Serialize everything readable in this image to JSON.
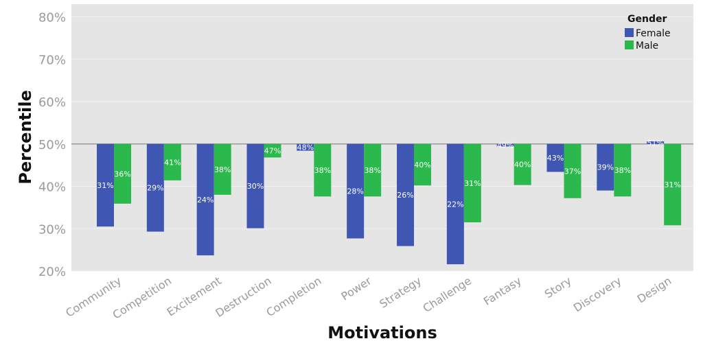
{
  "chart_data": {
    "type": "bar",
    "xlabel": "Motivations",
    "ylabel": "Percentile",
    "ylim": [
      20,
      83
    ],
    "baseline": 50,
    "yticks": [
      "20%",
      "30%",
      "40%",
      "50%",
      "60%",
      "70%",
      "80%"
    ],
    "ytick_values": [
      20,
      30,
      40,
      50,
      60,
      70,
      80
    ],
    "categories": [
      "Community",
      "Competition",
      "Excitement",
      "Destruction",
      "Completion",
      "Power",
      "Strategy",
      "Challenge",
      "Fantasy",
      "Story",
      "Discovery",
      "Design"
    ],
    "legend_title": "Gender",
    "legend_position": "top-right",
    "grid": true,
    "series": [
      {
        "name": "Female",
        "color": "#3f57b3",
        "values": [
          30.5,
          29.3,
          23.7,
          30.1,
          48.4,
          27.7,
          25.9,
          21.6,
          49.4,
          43.4,
          39.0,
          50.6
        ],
        "labels": [
          "31%",
          "29%",
          "24%",
          "30%",
          "48%",
          "28%",
          "26%",
          "22%",
          "49%",
          "43%",
          "39%",
          "51%"
        ]
      },
      {
        "name": "Male",
        "color": "#2bb84c",
        "values": [
          35.9,
          41.4,
          38.0,
          46.8,
          37.6,
          37.6,
          40.2,
          31.5,
          40.3,
          37.2,
          37.6,
          30.8
        ],
        "labels": [
          "36%",
          "41%",
          "38%",
          "47%",
          "38%",
          "38%",
          "40%",
          "31%",
          "40%",
          "37%",
          "38%",
          "31%"
        ]
      }
    ]
  }
}
